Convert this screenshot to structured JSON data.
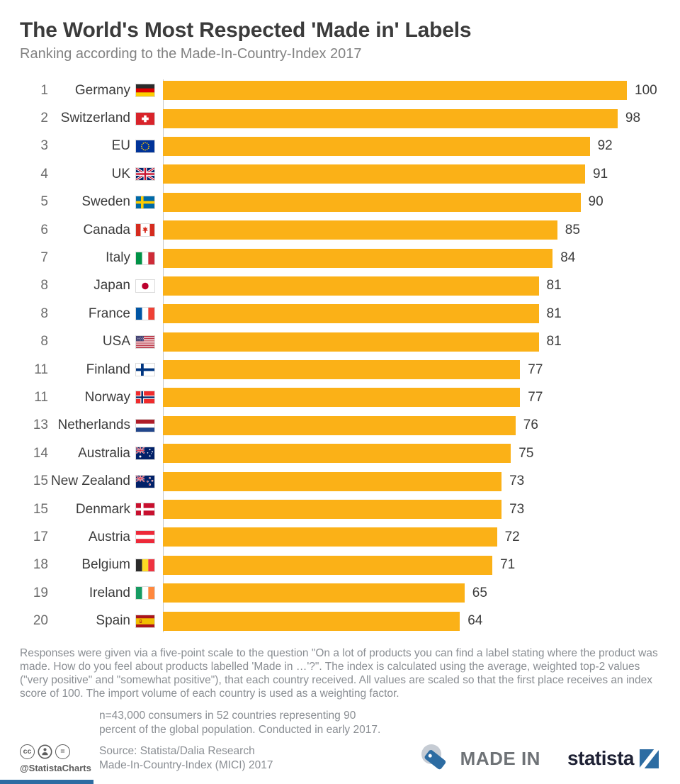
{
  "header": {
    "title": "The World's Most Respected 'Made in' Labels",
    "subtitle": "Ranking according to the Made-In-Country-Index 2017"
  },
  "chart_data": {
    "type": "bar",
    "orientation": "horizontal",
    "xlim": [
      0,
      100
    ],
    "title": "The World's Most Respected 'Made in' Labels",
    "subtitle": "Ranking according to the Made-In-Country-Index 2017",
    "rows": [
      {
        "rank": 1,
        "country": "Germany",
        "flag": "de",
        "value": 100
      },
      {
        "rank": 2,
        "country": "Switzerland",
        "flag": "ch",
        "value": 98
      },
      {
        "rank": 3,
        "country": "EU",
        "flag": "eu",
        "value": 92
      },
      {
        "rank": 4,
        "country": "UK",
        "flag": "uk",
        "value": 91
      },
      {
        "rank": 5,
        "country": "Sweden",
        "flag": "se",
        "value": 90
      },
      {
        "rank": 6,
        "country": "Canada",
        "flag": "ca",
        "value": 85
      },
      {
        "rank": 7,
        "country": "Italy",
        "flag": "it",
        "value": 84
      },
      {
        "rank": 8,
        "country": "Japan",
        "flag": "jp",
        "value": 81
      },
      {
        "rank": 8,
        "country": "France",
        "flag": "fr",
        "value": 81
      },
      {
        "rank": 8,
        "country": "USA",
        "flag": "us",
        "value": 81
      },
      {
        "rank": 11,
        "country": "Finland",
        "flag": "fi",
        "value": 77
      },
      {
        "rank": 11,
        "country": "Norway",
        "flag": "no",
        "value": 77
      },
      {
        "rank": 13,
        "country": "Netherlands",
        "flag": "nl",
        "value": 76
      },
      {
        "rank": 14,
        "country": "Australia",
        "flag": "au",
        "value": 75
      },
      {
        "rank": 15,
        "country": "New Zealand",
        "flag": "nz",
        "value": 73
      },
      {
        "rank": 15,
        "country": "Denmark",
        "flag": "dk",
        "value": 73
      },
      {
        "rank": 17,
        "country": "Austria",
        "flag": "at",
        "value": 72
      },
      {
        "rank": 18,
        "country": "Belgium",
        "flag": "be",
        "value": 71
      },
      {
        "rank": 19,
        "country": "Ireland",
        "flag": "ie",
        "value": 65
      },
      {
        "rank": 20,
        "country": "Spain",
        "flag": "es",
        "value": 64
      }
    ]
  },
  "notes": {
    "methodology": "Responses were given via a five-point scale to the question \"On a lot of products you can find a label stating where the product was made. How do you feel about products labelled 'Made in …'?\". The index is calculated using the average, weighted top-2 values (\"very positive\" and \"somewhat positive\"), that each country received. All values are scaled so that the first place receives an index score of 100. The import volume of each country is used as a weighting factor.",
    "sample": "n=43,000 consumers in 52 countries representing 90\npercent of the global population. Conducted in early 2017.",
    "source_line1": "Source: Statista/Dalia Research",
    "source_line2": "Made-In-Country-Index (MICI) 2017"
  },
  "footer": {
    "cc_label": "cc",
    "equal_label": "=",
    "handle": "@StatistaCharts",
    "made_in_label": "MADE IN",
    "statista_label": "statista"
  },
  "colors": {
    "bar": "#FBB117",
    "brand_blue": "#2D6CA2",
    "title_text": "#3B3B3B",
    "subtitle_text": "#828282",
    "note_text": "#8A8E93"
  }
}
